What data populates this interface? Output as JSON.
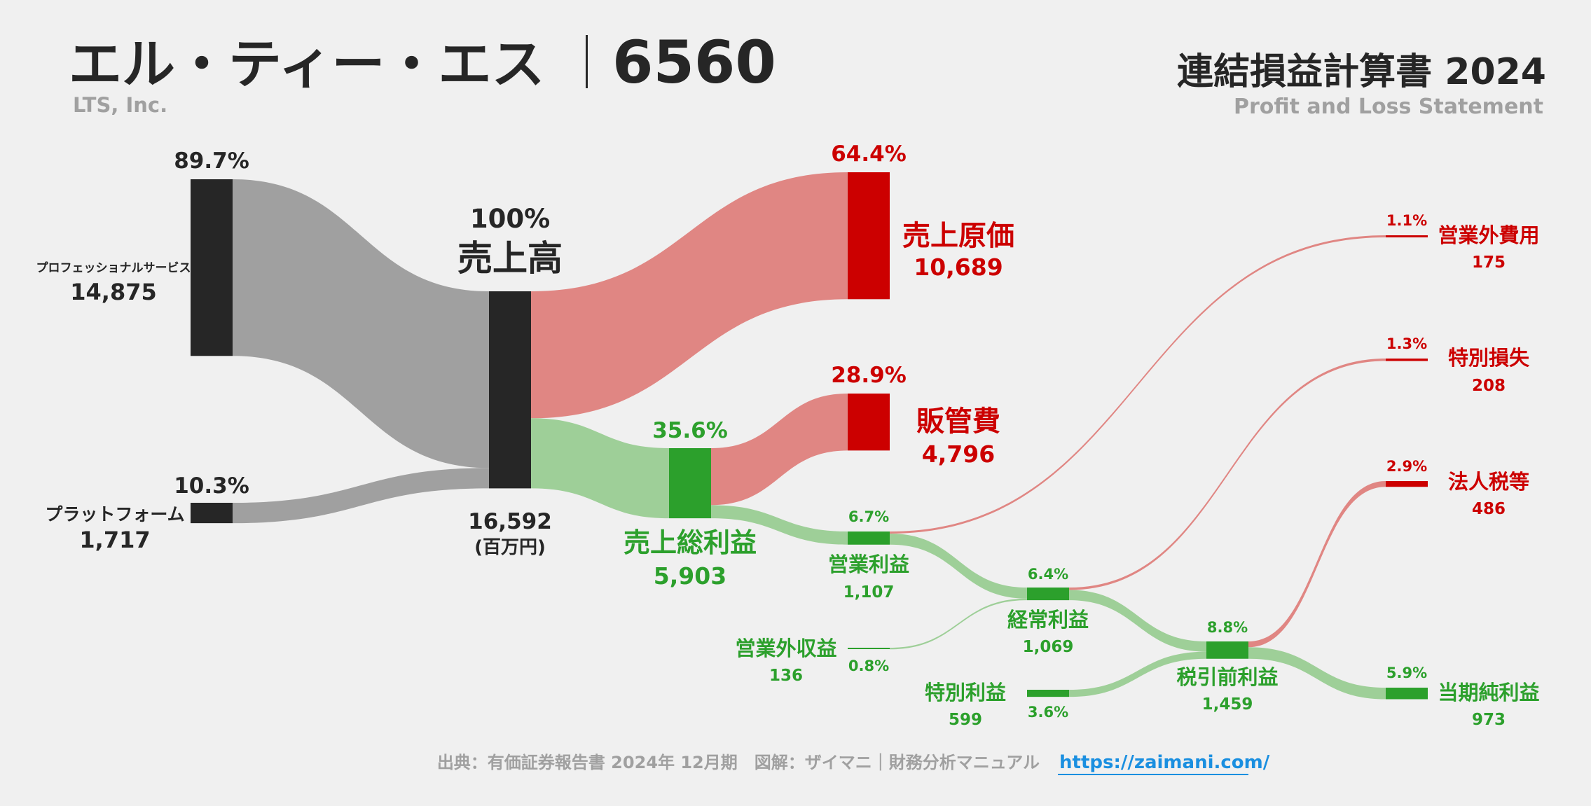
{
  "header": {
    "company_name_jp": "エル・ティー・エス",
    "ticker": "6560",
    "company_name_en": "LTS, Inc.",
    "statement_title_jp": "連結損益計算書 2024",
    "statement_title_en": "Profit and Loss Statement"
  },
  "footer": {
    "source_text": "出典：有価証券報告書 2024年 12月期　図解：ザイマニ｜財務分析マニュアル",
    "url": "https://zaimani.com/"
  },
  "colors": {
    "background": "#f0f0f0",
    "neutral_node": "#262626",
    "neutral_flow": "#a0a0a0",
    "cost_node": "#cc0000",
    "cost_flow": "#e08683",
    "profit_node": "#2ca02c",
    "profit_flow": "#9ecf98",
    "title": "#262626",
    "subtitle": "#a0a0a0",
    "link": "#1a8fe0"
  },
  "chart_data": {
    "type": "sankey",
    "unit": "(百万円)",
    "nodes": [
      {
        "id": "pro_service",
        "label": "プロフェッショナルサービス",
        "value": 14875,
        "value_text": "14,875",
        "pct": "89.7%",
        "kind": "neutral"
      },
      {
        "id": "platform",
        "label": "プラットフォーム",
        "value": 1717,
        "value_text": "1,717",
        "pct": "10.3%",
        "kind": "neutral"
      },
      {
        "id": "revenue",
        "label": "売上高",
        "value": 16592,
        "value_text": "16,592",
        "pct": "100%",
        "kind": "neutral"
      },
      {
        "id": "cogs",
        "label": "売上原価",
        "value": 10689,
        "value_text": "10,689",
        "pct": "64.4%",
        "kind": "cost"
      },
      {
        "id": "gross_profit",
        "label": "売上総利益",
        "value": 5903,
        "value_text": "5,903",
        "pct": "35.6%",
        "kind": "profit"
      },
      {
        "id": "sga",
        "label": "販管費",
        "value": 4796,
        "value_text": "4,796",
        "pct": "28.9%",
        "kind": "cost"
      },
      {
        "id": "operating_profit",
        "label": "営業利益",
        "value": 1107,
        "value_text": "1,107",
        "pct": "6.7%",
        "kind": "profit"
      },
      {
        "id": "non_op_income",
        "label": "営業外収益",
        "value": 136,
        "value_text": "136",
        "pct": "0.8%",
        "kind": "profit"
      },
      {
        "id": "non_op_expense",
        "label": "営業外費用",
        "value": 175,
        "value_text": "175",
        "pct": "1.1%",
        "kind": "cost"
      },
      {
        "id": "ordinary_profit",
        "label": "経常利益",
        "value": 1069,
        "value_text": "1,069",
        "pct": "6.4%",
        "kind": "profit"
      },
      {
        "id": "extraordinary_gain",
        "label": "特別利益",
        "value": 599,
        "value_text": "599",
        "pct": "3.6%",
        "kind": "profit"
      },
      {
        "id": "extraordinary_loss",
        "label": "特別損失",
        "value": 208,
        "value_text": "208",
        "pct": "1.3%",
        "kind": "cost"
      },
      {
        "id": "pretax_profit",
        "label": "税引前利益",
        "value": 1459,
        "value_text": "1,459",
        "pct": "8.8%",
        "kind": "profit"
      },
      {
        "id": "income_tax",
        "label": "法人税等",
        "value": 486,
        "value_text": "486",
        "pct": "2.9%",
        "kind": "cost"
      },
      {
        "id": "net_income",
        "label": "当期純利益",
        "value": 973,
        "value_text": "973",
        "pct": "5.9%",
        "kind": "profit"
      }
    ],
    "links": [
      {
        "source": "pro_service",
        "target": "revenue",
        "value": 14875
      },
      {
        "source": "platform",
        "target": "revenue",
        "value": 1717
      },
      {
        "source": "revenue",
        "target": "cogs",
        "value": 10689
      },
      {
        "source": "revenue",
        "target": "gross_profit",
        "value": 5903
      },
      {
        "source": "gross_profit",
        "target": "sga",
        "value": 4796
      },
      {
        "source": "gross_profit",
        "target": "operating_profit",
        "value": 1107
      },
      {
        "source": "operating_profit",
        "target": "non_op_expense",
        "value": 175
      },
      {
        "source": "operating_profit",
        "target": "ordinary_profit",
        "value": 932
      },
      {
        "source": "non_op_income",
        "target": "ordinary_profit",
        "value": 136
      },
      {
        "source": "ordinary_profit",
        "target": "extraordinary_loss",
        "value": 208
      },
      {
        "source": "ordinary_profit",
        "target": "pretax_profit",
        "value": 860
      },
      {
        "source": "extraordinary_gain",
        "target": "pretax_profit",
        "value": 599
      },
      {
        "source": "pretax_profit",
        "target": "income_tax",
        "value": 486
      },
      {
        "source": "pretax_profit",
        "target": "net_income",
        "value": 973
      }
    ]
  }
}
